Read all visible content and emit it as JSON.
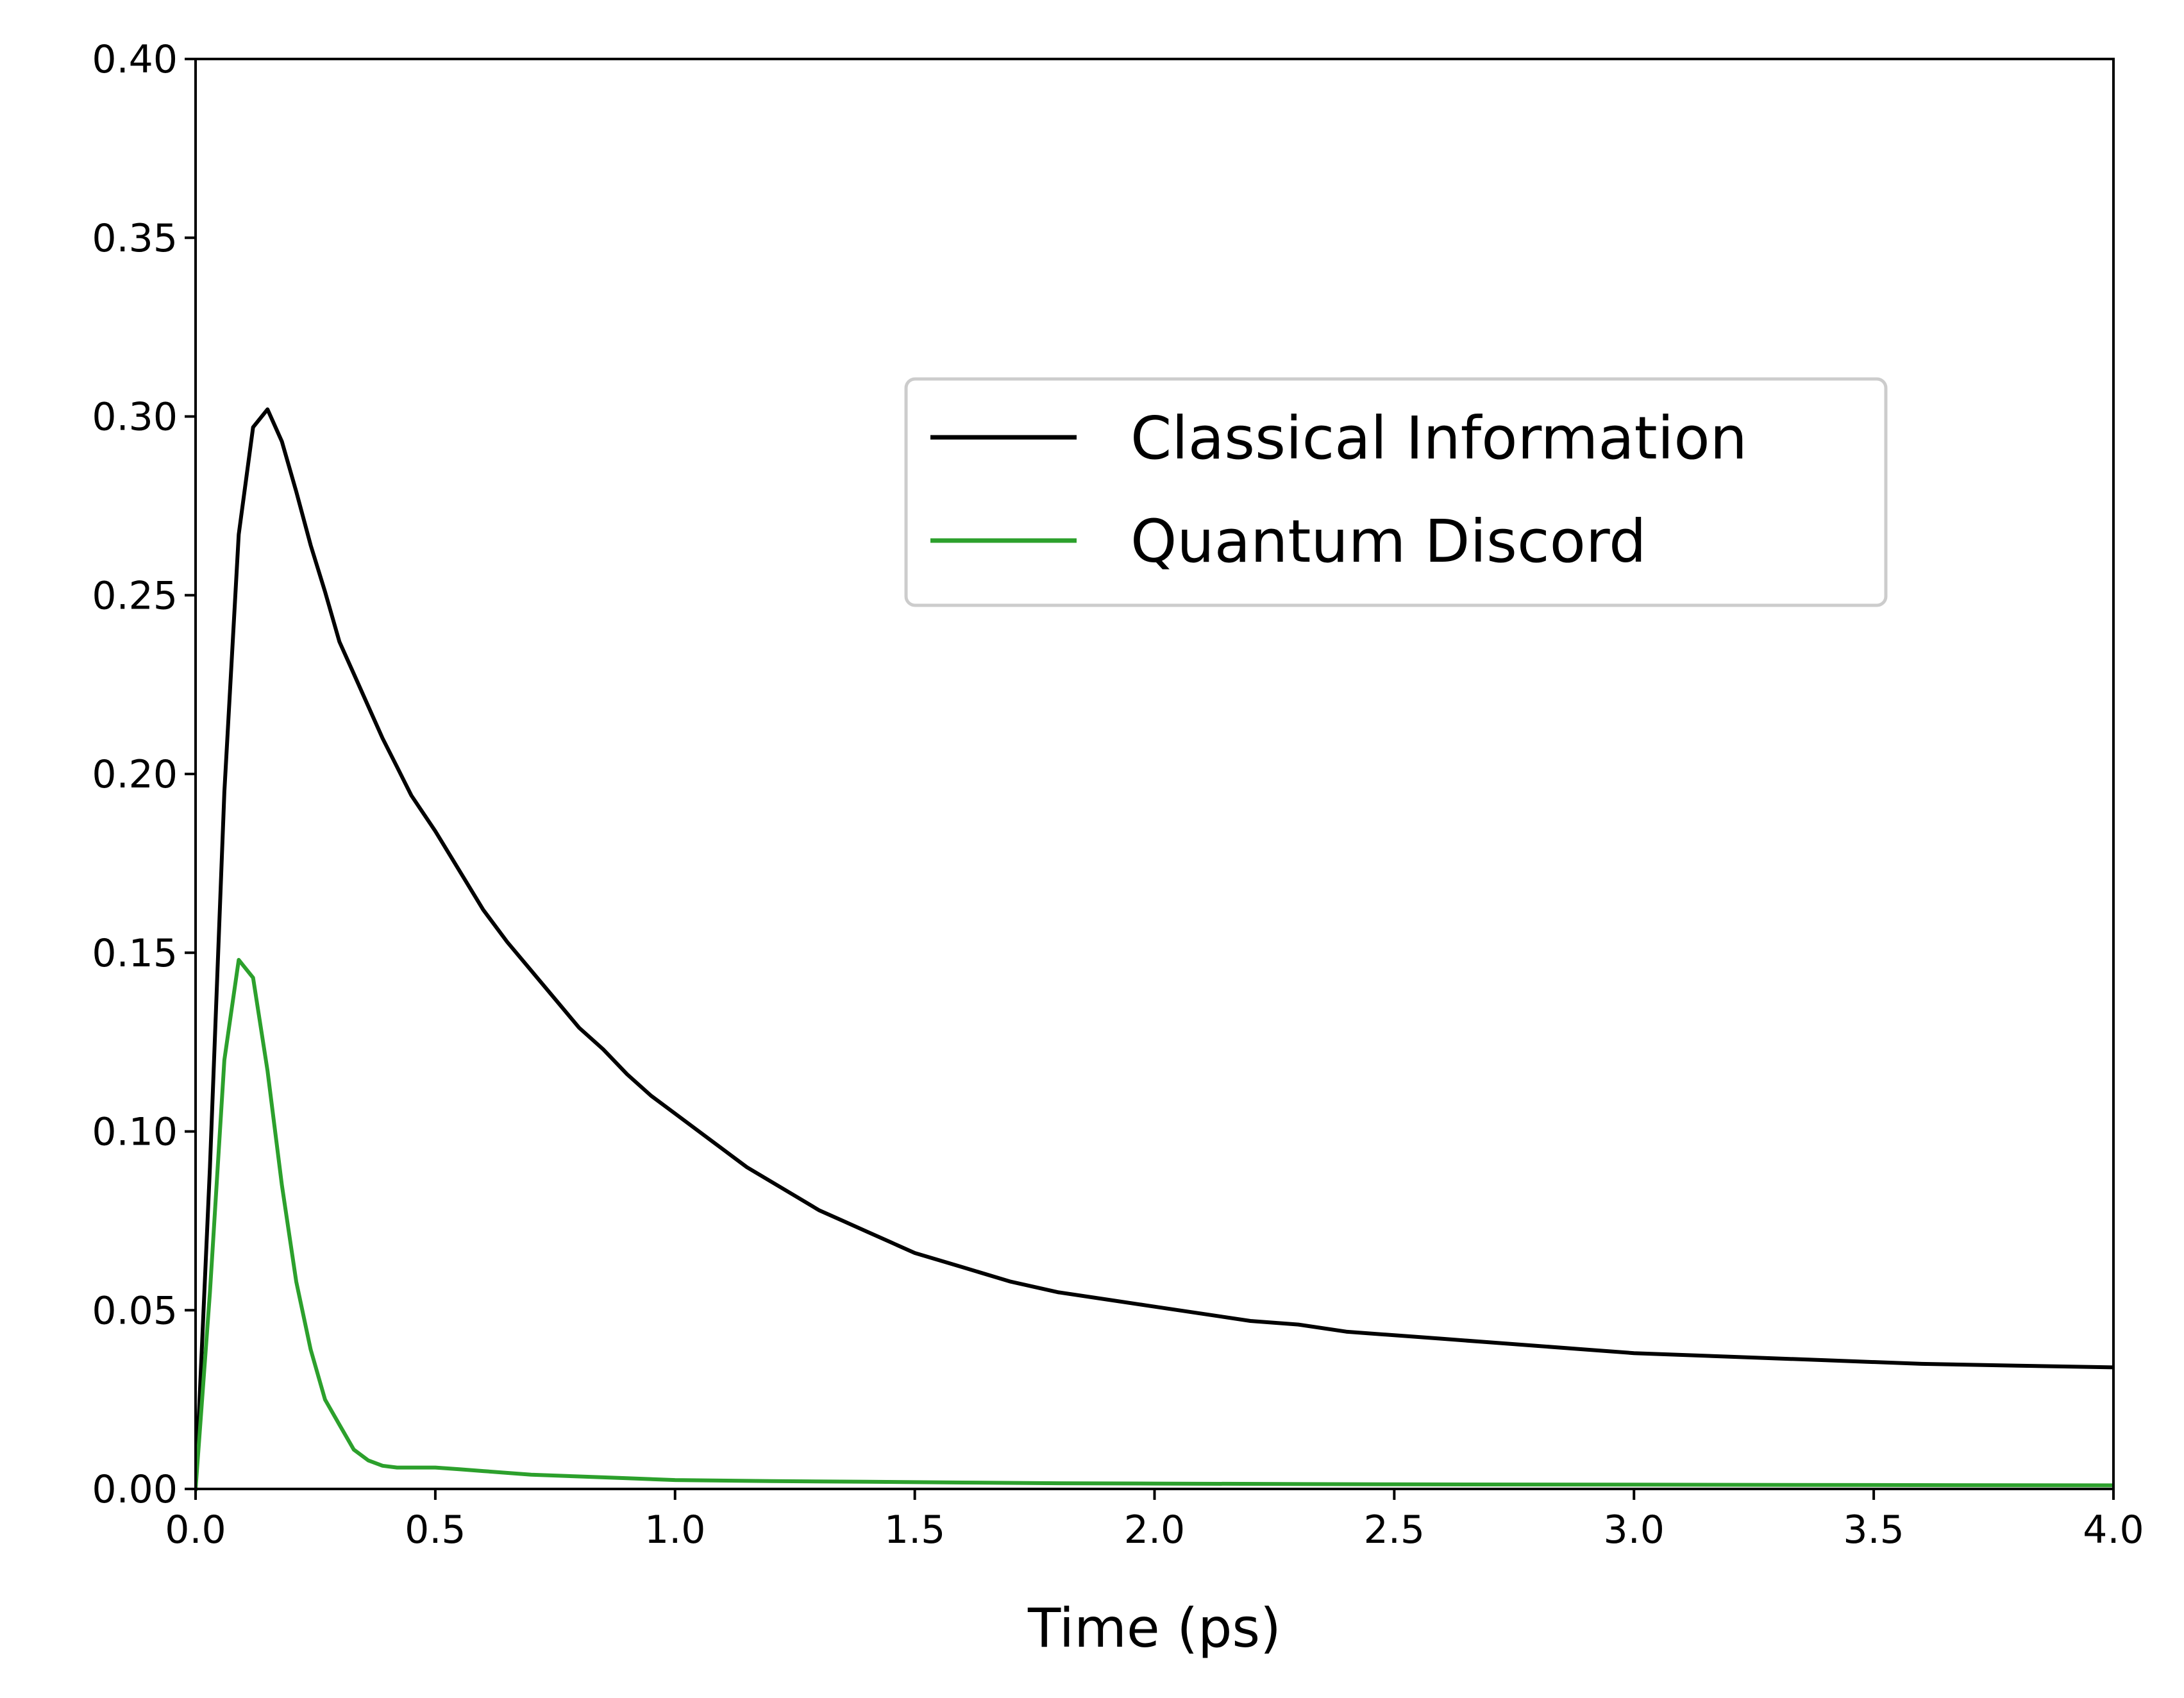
{
  "chart_data": {
    "type": "line",
    "title": "",
    "xlabel": "Time (ps)",
    "ylabel": "",
    "xlim": [
      0,
      4
    ],
    "ylim": [
      0,
      0.4
    ],
    "xticks": [
      "0.0",
      "0.5",
      "1.0",
      "1.5",
      "2.0",
      "2.5",
      "3.0",
      "3.5",
      "4.0"
    ],
    "yticks": [
      "0.00",
      "0.05",
      "0.10",
      "0.15",
      "0.20",
      "0.25",
      "0.30",
      "0.35",
      "0.40"
    ],
    "grid": false,
    "legend_position": "upper-right",
    "series": [
      {
        "name": "Classical Information",
        "color": "#000000",
        "x": [
          0,
          0.03,
          0.06,
          0.09,
          0.12,
          0.15,
          0.18,
          0.21,
          0.24,
          0.27,
          0.3,
          0.33,
          0.36,
          0.39,
          0.42,
          0.45,
          0.5,
          0.55,
          0.6,
          0.65,
          0.7,
          0.75,
          0.8,
          0.85,
          0.9,
          0.95,
          1.0,
          1.05,
          1.1,
          1.15,
          1.2,
          1.25,
          1.3,
          1.35,
          1.4,
          1.45,
          1.5,
          1.6,
          1.7,
          1.8,
          1.9,
          2.0,
          2.1,
          2.2,
          2.3,
          2.4,
          2.5,
          2.6,
          2.7,
          2.8,
          2.9,
          3.0,
          3.2,
          3.4,
          3.6,
          3.8,
          4.0
        ],
        "y": [
          0.0,
          0.09,
          0.195,
          0.267,
          0.297,
          0.302,
          0.293,
          0.279,
          0.264,
          0.251,
          0.237,
          0.228,
          0.219,
          0.21,
          0.202,
          0.194,
          0.184,
          0.173,
          0.162,
          0.153,
          0.145,
          0.137,
          0.129,
          0.123,
          0.116,
          0.11,
          0.105,
          0.1,
          0.095,
          0.09,
          0.086,
          0.082,
          0.078,
          0.075,
          0.072,
          0.069,
          0.066,
          0.062,
          0.058,
          0.055,
          0.053,
          0.051,
          0.049,
          0.047,
          0.046,
          0.044,
          0.043,
          0.042,
          0.041,
          0.04,
          0.039,
          0.038,
          0.037,
          0.036,
          0.035,
          0.0345,
          0.034
        ]
      },
      {
        "name": "Quantum Discord",
        "color": "#2ca02c",
        "x": [
          0,
          0.03,
          0.06,
          0.09,
          0.12,
          0.15,
          0.18,
          0.21,
          0.24,
          0.27,
          0.3,
          0.33,
          0.36,
          0.39,
          0.42,
          0.45,
          0.5,
          0.55,
          0.6,
          0.7,
          0.8,
          0.9,
          1.0,
          1.2,
          1.4,
          1.6,
          1.8,
          2.0,
          2.5,
          3.0,
          3.5,
          4.0
        ],
        "y": [
          0.0,
          0.055,
          0.12,
          0.148,
          0.143,
          0.117,
          0.085,
          0.058,
          0.039,
          0.025,
          0.018,
          0.011,
          0.008,
          0.0065,
          0.006,
          0.006,
          0.006,
          0.0055,
          0.005,
          0.004,
          0.0035,
          0.003,
          0.0025,
          0.0022,
          0.002,
          0.0018,
          0.0016,
          0.0015,
          0.0013,
          0.0012,
          0.0011,
          0.001
        ]
      }
    ]
  }
}
